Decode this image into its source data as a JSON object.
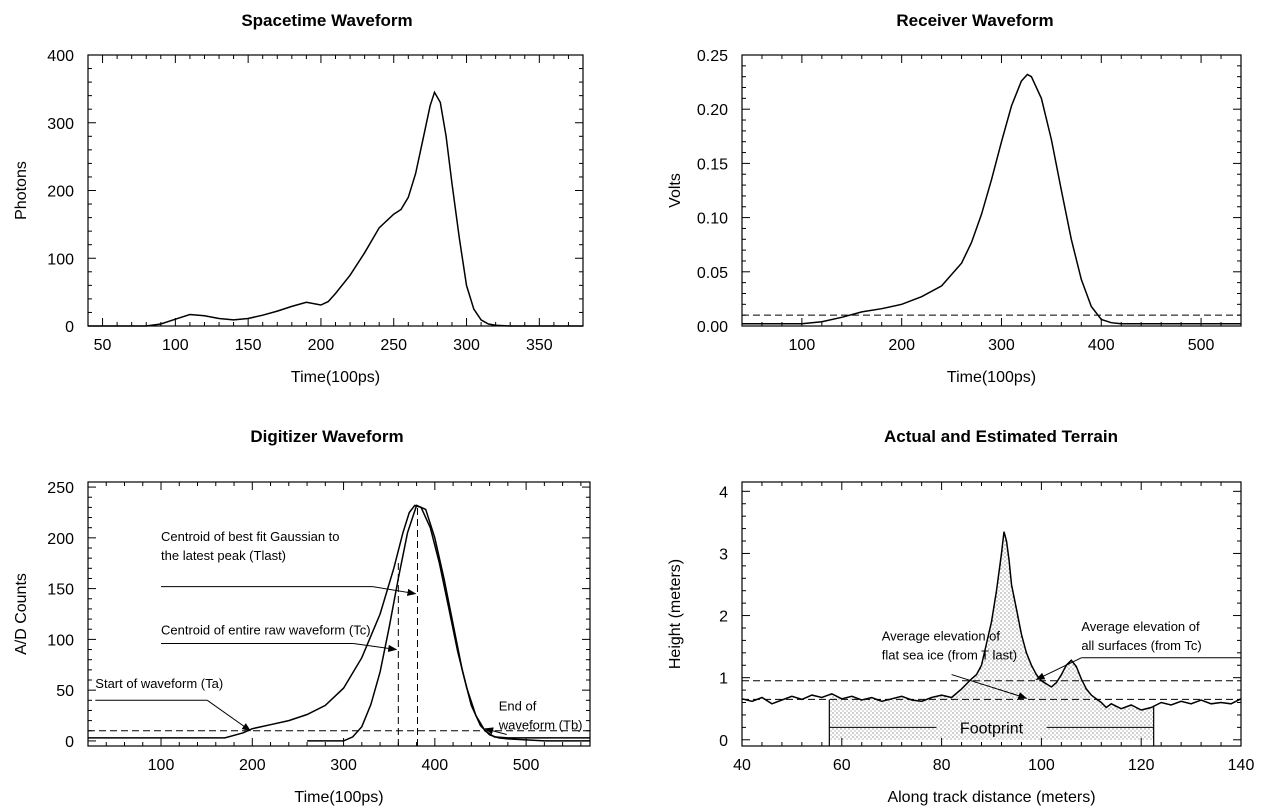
{
  "chart_data": [
    {
      "id": "spacetime",
      "type": "line",
      "title": "Spacetime Waveform",
      "xlabel": "Time(100ps)",
      "ylabel": "Photons",
      "xlim": [
        40,
        380
      ],
      "ylim": [
        0,
        400
      ],
      "xticks": [
        50,
        100,
        150,
        200,
        250,
        300,
        350
      ],
      "yticks": [
        0,
        100,
        200,
        300,
        400
      ],
      "series": [
        {
          "x": [
            40,
            80,
            90,
            100,
            110,
            120,
            130,
            140,
            150,
            160,
            170,
            180,
            190,
            200,
            205,
            210,
            220,
            230,
            240,
            250,
            255,
            260,
            265,
            270,
            275,
            278,
            282,
            286,
            290,
            295,
            300,
            305,
            310,
            315,
            320,
            330,
            380
          ],
          "y": [
            0,
            0,
            3,
            10,
            17,
            15,
            11,
            9,
            11,
            16,
            22,
            29,
            35,
            31,
            36,
            48,
            75,
            108,
            145,
            165,
            172,
            190,
            225,
            275,
            325,
            345,
            330,
            280,
            210,
            130,
            60,
            25,
            9,
            3,
            1,
            0,
            0
          ],
          "color": "#000000"
        }
      ]
    },
    {
      "id": "receiver",
      "type": "line",
      "title": "Receiver  Waveform",
      "xlabel": "Time(100ps)",
      "ylabel": "Volts",
      "xlim": [
        40,
        540
      ],
      "ylim": [
        0,
        0.25
      ],
      "xticks": [
        100,
        200,
        300,
        400,
        500
      ],
      "yticks": [
        0.0,
        0.05,
        0.1,
        0.15,
        0.2,
        0.25
      ],
      "ytick_labels": [
        "0.00",
        "0.05",
        "0.10",
        "0.15",
        "0.20",
        "0.25"
      ],
      "series": [
        {
          "x": [
            40,
            100,
            120,
            140,
            160,
            180,
            200,
            220,
            240,
            260,
            270,
            280,
            290,
            300,
            310,
            320,
            326,
            330,
            340,
            350,
            360,
            370,
            380,
            390,
            400,
            410,
            420,
            440,
            540
          ],
          "y": [
            0.002,
            0.002,
            0.004,
            0.008,
            0.013,
            0.016,
            0.02,
            0.027,
            0.037,
            0.058,
            0.077,
            0.103,
            0.135,
            0.17,
            0.203,
            0.226,
            0.232,
            0.23,
            0.21,
            0.172,
            0.125,
            0.08,
            0.043,
            0.018,
            0.006,
            0.003,
            0.002,
            0.002,
            0.002
          ],
          "color": "#000000"
        }
      ],
      "hlines": [
        {
          "y": 0.01,
          "style": "dashed"
        }
      ]
    },
    {
      "id": "digitizer",
      "type": "line",
      "title": "Digitizer Waveform",
      "xlabel": "Time(100ps)",
      "ylabel": "A/D Counts",
      "xlim": [
        20,
        570
      ],
      "ylim": [
        -5,
        255
      ],
      "xticks": [
        100,
        200,
        300,
        400,
        500
      ],
      "yticks": [
        0,
        50,
        100,
        150,
        200,
        250
      ],
      "series": [
        {
          "name": "raw",
          "x": [
            20,
            170,
            190,
            200,
            220,
            240,
            260,
            280,
            300,
            320,
            340,
            355,
            365,
            372,
            378,
            385,
            395,
            405,
            415,
            425,
            435,
            445,
            455,
            465,
            480,
            570
          ],
          "y": [
            3,
            3,
            8,
            12,
            16,
            20,
            26,
            35,
            52,
            82,
            125,
            170,
            205,
            225,
            232,
            230,
            210,
            175,
            132,
            88,
            52,
            25,
            10,
            4,
            3,
            3
          ],
          "color": "#000000"
        },
        {
          "name": "gaussian",
          "x": [
            260,
            300,
            310,
            320,
            330,
            340,
            350,
            360,
            370,
            380,
            390,
            400,
            410,
            420,
            430,
            440,
            450,
            460,
            470,
            480,
            500,
            520,
            540,
            570
          ],
          "y": [
            0,
            0,
            4,
            14,
            36,
            68,
            112,
            160,
            205,
            232,
            228,
            200,
            160,
            115,
            70,
            35,
            15,
            6,
            3,
            2,
            1,
            0,
            0,
            0
          ],
          "color": "#000000"
        }
      ],
      "hlines": [
        {
          "y": 10,
          "style": "dashed"
        }
      ],
      "vlines": [
        {
          "x": 360,
          "y_top": 178,
          "style": "dashed"
        },
        {
          "x": 381,
          "y_top": 232,
          "style": "dashed"
        }
      ],
      "annotations": [
        {
          "lines": [
            "Centroid of best fit Gaussian to",
            "the latest peak (Tlast)"
          ],
          "text_x": 100,
          "text_y": 197,
          "leader_y": 152,
          "arrow_to": [
            381,
            145
          ]
        },
        {
          "lines": [
            "Centroid of entire raw waveform (Tc)"
          ],
          "text_x": 100,
          "text_y": 105,
          "leader_y": 96,
          "arrow_to": [
            360,
            90
          ]
        },
        {
          "lines": [
            "Start of waveform (Ta)"
          ],
          "text_x": 28,
          "text_y": 52,
          "leader_y": 40,
          "arrow_to": [
            200,
            10
          ]
        },
        {
          "lines": [
            "End  of",
            "waveform (Tb)"
          ],
          "text_x": 470,
          "text_y": 30,
          "leader_y": null,
          "arrow_to": [
            455,
            10
          ]
        }
      ]
    },
    {
      "id": "terrain",
      "type": "area",
      "title": "Actual and Estimated Terrain",
      "xlabel": "Along track distance (meters)",
      "ylabel": "Height (meters)",
      "xlim": [
        40,
        140
      ],
      "ylim": [
        -0.1,
        4.15
      ],
      "xticks": [
        40,
        60,
        80,
        100,
        120,
        140
      ],
      "yticks": [
        0,
        1,
        2,
        3,
        4
      ],
      "footprint": {
        "x_start": 57.5,
        "x_end": 122.5,
        "label": "Footprint",
        "label_y": 0.2
      },
      "series": [
        {
          "name": "terrain",
          "x": [
            40,
            42,
            44,
            46,
            48,
            50,
            52,
            54,
            56,
            58,
            60,
            62,
            64,
            66,
            68,
            70,
            72,
            74,
            76,
            78,
            80,
            82,
            84,
            86,
            87,
            88,
            89,
            90,
            91,
            92,
            92.5,
            93,
            93.5,
            94,
            95,
            96,
            97,
            98,
            99,
            100,
            101,
            102,
            103,
            104,
            105,
            106,
            107,
            108,
            109,
            110,
            111,
            112,
            113,
            114,
            116,
            118,
            120,
            122,
            124,
            126,
            128,
            130,
            132,
            134,
            136,
            138,
            140
          ],
          "y": [
            0.66,
            0.62,
            0.68,
            0.58,
            0.64,
            0.7,
            0.65,
            0.72,
            0.68,
            0.74,
            0.66,
            0.7,
            0.64,
            0.68,
            0.62,
            0.66,
            0.7,
            0.64,
            0.62,
            0.68,
            0.72,
            0.68,
            0.82,
            0.98,
            1.05,
            1.2,
            1.55,
            1.9,
            2.4,
            3.0,
            3.35,
            3.2,
            2.9,
            2.5,
            2.1,
            1.7,
            1.4,
            1.2,
            1.05,
            0.95,
            0.9,
            0.85,
            0.92,
            1.05,
            1.2,
            1.28,
            1.18,
            0.98,
            0.82,
            0.72,
            0.66,
            0.6,
            0.52,
            0.58,
            0.5,
            0.56,
            0.48,
            0.52,
            0.6,
            0.56,
            0.62,
            0.58,
            0.64,
            0.58,
            0.6,
            0.58,
            0.66
          ],
          "color": "#000000"
        }
      ],
      "hlines": [
        {
          "y": 0.95,
          "style": "dashed"
        },
        {
          "y": 0.65,
          "style": "dashed"
        }
      ],
      "annotations": [
        {
          "lines": [
            "Average elevation of",
            "flat sea ice (from T last)"
          ],
          "text_x": 68,
          "text_y": 1.6,
          "arrow_from": [
            82,
            1.05
          ],
          "arrow_to": [
            97,
            0.67
          ]
        },
        {
          "lines": [
            "Average elevation of",
            "all surfaces (from Tc)"
          ],
          "text_x": 108,
          "text_y": 1.75,
          "leader": [
            [
              108,
              1.32
            ],
            [
              140,
              1.32
            ]
          ],
          "arrow_from": [
            108,
            1.32
          ],
          "arrow_to": [
            99,
            0.97
          ]
        }
      ]
    }
  ]
}
